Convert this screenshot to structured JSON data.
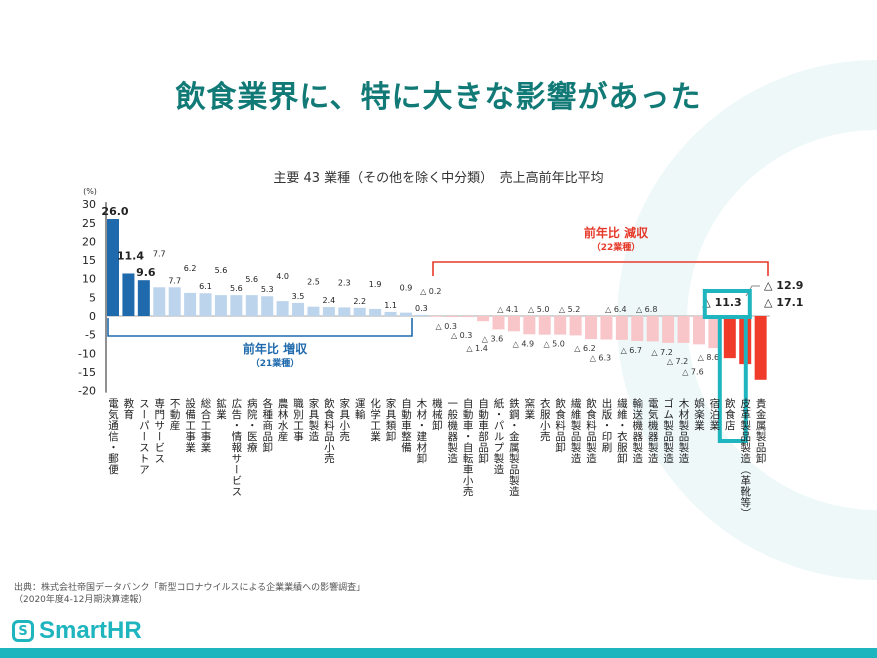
{
  "title": "飲食業界に、特に大きな影響があった",
  "source": {
    "line1": "出典：株式会社帝国データバンク「新型コロナウイルスによる企業業績への影響調査」",
    "line2": "（2020年度4-12月期決算速報）"
  },
  "logo": {
    "text": "SmartHR",
    "mark": "S"
  },
  "colors": {
    "accent": "#1fb5be",
    "title": "#117a76",
    "increase_dark": "#1f6aad",
    "increase_light": "#bdd5ec",
    "decrease_light": "#f8c5c9",
    "decrease_dark": "#f03a2a",
    "highlight": "#1fb5be"
  },
  "chart_data": {
    "type": "bar",
    "title": "主要 43 業種（その他を除く中分類）　売上高前年比平均",
    "ylabel": "(%)",
    "ylim": [
      -20,
      30
    ],
    "yticks": [
      30,
      25,
      20,
      15,
      10,
      5,
      0,
      -5,
      -10,
      -15,
      -20
    ],
    "grid": false,
    "categories": [
      "電気通信・郵便",
      "教育",
      "スーパーストア",
      "専門サービス",
      "不動産",
      "設備工事業",
      "総合工事業",
      "鉱業",
      "広告・情報サービス",
      "病院・医療",
      "各種商品卸",
      "農林水産",
      "職別工事",
      "家具製造",
      "飲食料品小売",
      "家具小売",
      "運輸",
      "化学工業",
      "家具類卸",
      "自動車整備",
      "木材・建材卸",
      "機械卸",
      "一般機器製造",
      "自動車・自転車小売",
      "自動車部品卸",
      "紙・パルプ製造",
      "鉄鋼・金属製品製造",
      "窯業",
      "衣服小売",
      "飲食料品卸",
      "繊維製品製造",
      "飲食料品製造",
      "出版・印刷",
      "繊維・衣服卸",
      "輸送機器製造",
      "電気機器製造",
      "ゴム製品製造",
      "木材製品製造",
      "娯楽業",
      "宿泊業",
      "飲食店",
      "皮革製品製造（革靴等）",
      "貴金属製品卸"
    ],
    "values": [
      26.0,
      11.4,
      9.6,
      7.7,
      7.7,
      6.2,
      6.1,
      5.6,
      5.6,
      5.6,
      5.3,
      4.0,
      3.5,
      2.5,
      2.4,
      2.3,
      2.2,
      1.9,
      1.1,
      0.9,
      0.3,
      -0.2,
      -0.3,
      -0.3,
      -1.4,
      -3.6,
      -4.1,
      -4.9,
      -5.0,
      -5.0,
      -5.2,
      -6.2,
      -6.3,
      -6.4,
      -6.7,
      -6.8,
      -7.2,
      -7.2,
      -7.6,
      -8.6,
      -11.3,
      -12.9,
      -17.1
    ],
    "value_labels": [
      "26.0",
      "11.4",
      "9.6",
      "7.7",
      "7.7",
      "6.2",
      "6.1",
      "5.6",
      "5.6",
      "5.6",
      "5.3",
      "4.0",
      "3.5",
      "2.5",
      "2.4",
      "2.3",
      "2.2",
      "1.9",
      "1.1",
      "0.9",
      "0.3",
      "△ 0.2",
      "△ 0.3",
      "△ 0.3",
      "△ 1.4",
      "△ 3.6",
      "△ 4.1",
      "△ 4.9",
      "△ 5.0",
      "△ 5.0",
      "△ 5.2",
      "△ 6.2",
      "△ 6.3",
      "△ 6.4",
      "△ 6.7",
      "△ 6.8",
      "△ 7.2",
      "△ 7.2",
      "△ 7.6",
      "△ 8.6",
      "△ 11.3",
      "△ 12.9",
      "△ 17.1"
    ],
    "highlight_category": "飲食店",
    "annotations": {
      "increase": {
        "label": "前年比 増収",
        "sub": "（21業種）"
      },
      "decrease": {
        "label": "前年比 減収",
        "sub": "（22業種）"
      }
    }
  }
}
